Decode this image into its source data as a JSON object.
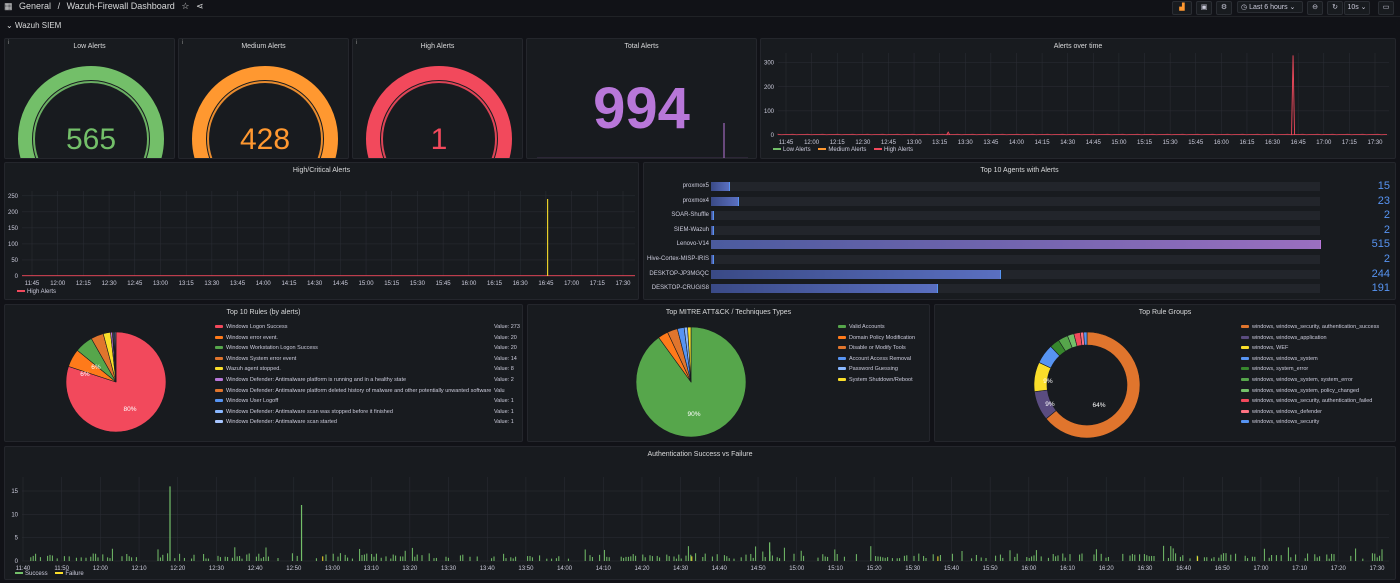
{
  "topbar": {
    "grid_icon": "apps-icon",
    "breadcrumb_root": "General",
    "breadcrumb_sep": "/",
    "dashboard_title": "Wazuh-Firewall Dashboard",
    "time_range": "Last 6 hours",
    "refresh_interval": "10s"
  },
  "row": {
    "title": "Wazuh SIEM",
    "collapse_icon": "chevron-down-icon"
  },
  "gauges": [
    {
      "title": "Low Alerts",
      "value": "565",
      "color": "#73bf69",
      "fraction": 1.0
    },
    {
      "title": "Medium Alerts",
      "value": "428",
      "color": "#ff9830",
      "fraction": 1.0
    },
    {
      "title": "High Alerts",
      "value": "1",
      "color": "#f2495c",
      "fraction": 1.0
    }
  ],
  "total": {
    "title": "Total Alerts",
    "value": "994",
    "color": "#b877d9"
  },
  "alerts_over_time": {
    "title": "Alerts over time",
    "legend": [
      {
        "label": "Low Alerts",
        "color": "#73bf69"
      },
      {
        "label": "Medium Alerts",
        "color": "#ff9830"
      },
      {
        "label": "High Alerts",
        "color": "#f2495c"
      }
    ]
  },
  "high_critical": {
    "title": "High/Critical Alerts",
    "legend": [
      {
        "label": "High Alerts",
        "color": "#f2495c"
      }
    ]
  },
  "top_agents": {
    "title": "Top 10 Agents with Alerts",
    "max": 515,
    "items": [
      {
        "name": "proxmox5",
        "value": "15",
        "num": 15
      },
      {
        "name": "proxmox4",
        "value": "23",
        "num": 23
      },
      {
        "name": "SOAR-Shuffle",
        "value": "2",
        "num": 2
      },
      {
        "name": "SIEM-Wazuh",
        "value": "2",
        "num": 2
      },
      {
        "name": "Lenovo-V14",
        "value": "515",
        "num": 515
      },
      {
        "name": "Hive-Cortex-MISP-IRIS",
        "value": "2",
        "num": 2
      },
      {
        "name": "DESKTOP-JP3MGQC",
        "value": "244",
        "num": 244
      },
      {
        "name": "DESKTOP-CRUGIS8",
        "value": "191",
        "num": 191
      }
    ]
  },
  "top_rules": {
    "title": "Top 10 Rules (by alerts)",
    "items": [
      {
        "label": "Windows Logon Success",
        "value": "Value: 273",
        "color": "#f2495c"
      },
      {
        "label": "Windows error event.",
        "value": "Value: 20",
        "color": "#ff7a1a"
      },
      {
        "label": "Windows Workstation Logon Success",
        "value": "Value: 20",
        "color": "#56a64b"
      },
      {
        "label": "Windows System error event",
        "value": "Value: 14",
        "color": "#e0752d"
      },
      {
        "label": "Wazuh agent stopped.",
        "value": "Value: 8",
        "color": "#fade2a"
      },
      {
        "label": "Windows Defender: Antimalware platform is running and in a healthy state",
        "value": "Value: 2",
        "color": "#b877d9"
      },
      {
        "label": "Windows Defender: Antimalware platform deleted history of malware and other potentially unwanted software",
        "value": "Valu",
        "color": "#e0752d"
      },
      {
        "label": "Windows User Logoff",
        "value": "Value: 1",
        "color": "#5794f2"
      },
      {
        "label": "Windows Defender: Antimalware scan was stopped before it finished",
        "value": "Value: 1",
        "color": "#8ab8ff"
      },
      {
        "label": "Windows Defender: Antimalware scan started",
        "value": "Value: 1",
        "color": "#a8c6ff"
      }
    ],
    "slice_labels": [
      "80%",
      "6%",
      "6%"
    ]
  },
  "mitre": {
    "title": "Top MITRE ATT&CK / Techniques Types",
    "items": [
      {
        "label": "Valid Accounts",
        "color": "#56a64b"
      },
      {
        "label": "Domain Policy Modification",
        "color": "#ff7a1a"
      },
      {
        "label": "Disable or Modify Tools",
        "color": "#e0752d"
      },
      {
        "label": "Account Access Removal",
        "color": "#5794f2"
      },
      {
        "label": "Password Guessing",
        "color": "#8ab8ff"
      },
      {
        "label": "System Shutdown/Reboot",
        "color": "#fade2a"
      }
    ],
    "slice_labels": [
      "90%"
    ]
  },
  "rule_groups": {
    "title": "Top Rule Groups",
    "items": [
      {
        "label": "windows, windows_security, authentication_success",
        "color": "#e0752d"
      },
      {
        "label": "windows, windows_application",
        "color": "#5a4c80"
      },
      {
        "label": "windows, WEF",
        "color": "#fade2a"
      },
      {
        "label": "windows, windows_system",
        "color": "#5794f2"
      },
      {
        "label": "windows, system_error",
        "color": "#37872d"
      },
      {
        "label": "windows, windows_system, system_error",
        "color": "#56a64b"
      },
      {
        "label": "windows, windows_system, policy_changed",
        "color": "#73bf69"
      },
      {
        "label": "windows, windows_security, authentication_failed",
        "color": "#f2495c"
      },
      {
        "label": "windows, windows_defender",
        "color": "#ff7383"
      },
      {
        "label": "windows, windows_security",
        "color": "#5794f2"
      }
    ],
    "slice_labels": [
      "64%",
      "9%",
      "9%"
    ]
  },
  "auth": {
    "title": "Authentication Success vs Failure",
    "legend": [
      {
        "label": "Success",
        "color": "#73bf69"
      },
      {
        "label": "Failure",
        "color": "#fade2a"
      }
    ]
  },
  "chart_data": [
    {
      "type": "line",
      "title": "Alerts over time",
      "x_ticks": [
        "11:45",
        "12:00",
        "12:15",
        "12:30",
        "12:45",
        "13:00",
        "13:15",
        "13:30",
        "13:45",
        "14:00",
        "14:15",
        "14:30",
        "14:45",
        "15:00",
        "15:15",
        "15:30",
        "15:45",
        "16:00",
        "16:15",
        "16:30",
        "16:45",
        "17:00",
        "17:15",
        "17:30"
      ],
      "y_ticks": [
        0,
        100,
        200,
        300
      ],
      "ylim": [
        0,
        340
      ],
      "series": [
        {
          "name": "Low Alerts",
          "values": []
        },
        {
          "name": "Medium Alerts",
          "values": []
        },
        {
          "name": "High Alerts",
          "peaks": [
            {
              "x": "13:20",
              "y": 12
            },
            {
              "x": "16:42",
              "y": 330
            }
          ]
        }
      ]
    },
    {
      "type": "line",
      "title": "High/Critical Alerts",
      "x_ticks": [
        "11:45",
        "12:00",
        "12:15",
        "12:30",
        "12:45",
        "13:00",
        "13:15",
        "13:30",
        "13:45",
        "14:00",
        "14:15",
        "14:30",
        "14:45",
        "15:00",
        "15:15",
        "15:30",
        "15:45",
        "16:00",
        "16:15",
        "16:30",
        "16:45",
        "17:00",
        "17:15",
        "17:30"
      ],
      "y_ticks": [
        0,
        50,
        100,
        150,
        200,
        250
      ],
      "ylim": [
        0,
        265
      ],
      "series": [
        {
          "name": "High Alerts",
          "peaks": [
            {
              "x": "16:46",
              "y": 240
            }
          ]
        }
      ]
    },
    {
      "type": "bar",
      "title": "Top 10 Agents with Alerts",
      "categories": [
        "proxmox5",
        "proxmox4",
        "SOAR-Shuffle",
        "SIEM-Wazuh",
        "Lenovo-V14",
        "Hive-Cortex-MISP-IRIS",
        "DESKTOP-JP3MGQC",
        "DESKTOP-CRUGIS8"
      ],
      "values": [
        15,
        23,
        2,
        2,
        515,
        2,
        244,
        191
      ]
    },
    {
      "type": "pie",
      "title": "Top 10 Rules (by alerts)",
      "categories": [
        "Windows Logon Success",
        "Windows error event.",
        "Windows Workstation Logon Success",
        "Windows System error event",
        "Wazuh agent stopped.",
        "Windows Defender: Antimalware platform is running and in a healthy state",
        "Windows Defender: Antimalware platform deleted history of malware and other potentially unwanted software",
        "Windows User Logoff",
        "Windows Defender: Antimalware scan was stopped before it finished",
        "Windows Defender: Antimalware scan started"
      ],
      "values": [
        273,
        20,
        20,
        14,
        8,
        2,
        1,
        1,
        1,
        1
      ]
    },
    {
      "type": "pie",
      "title": "Top MITRE ATT&CK / Techniques Types",
      "categories": [
        "Valid Accounts",
        "Domain Policy Modification",
        "Disable or Modify Tools",
        "Account Access Removal",
        "Password Guessing",
        "System Shutdown/Reboot"
      ],
      "values": [
        90,
        3,
        3,
        2,
        1,
        1
      ]
    },
    {
      "type": "pie",
      "title": "Top Rule Groups",
      "donut": true,
      "categories": [
        "windows, windows_security, authentication_success",
        "windows, windows_application",
        "windows, WEF",
        "windows, windows_system",
        "windows, system_error",
        "windows, windows_system, system_error",
        "windows, windows_system, policy_changed",
        "windows, windows_security, authentication_failed",
        "windows, windows_defender",
        "windows, windows_security"
      ],
      "values": [
        64,
        9,
        9,
        6,
        3,
        3,
        2,
        2,
        1,
        1
      ]
    },
    {
      "type": "bar",
      "title": "Authentication Success vs Failure",
      "x_ticks": [
        "11:40",
        "11:50",
        "12:00",
        "12:10",
        "12:20",
        "12:30",
        "12:40",
        "12:50",
        "13:00",
        "13:10",
        "13:20",
        "13:30",
        "13:40",
        "13:50",
        "14:00",
        "14:10",
        "14:20",
        "14:30",
        "14:40",
        "14:50",
        "15:00",
        "15:10",
        "15:20",
        "15:30",
        "15:40",
        "15:50",
        "16:00",
        "16:10",
        "16:20",
        "16:30",
        "16:40",
        "16:50",
        "17:00",
        "17:10",
        "17:20",
        "17:30"
      ],
      "y_ticks": [
        0,
        5,
        10,
        15
      ],
      "ylim": [
        0,
        18
      ],
      "series": [
        {
          "name": "Success",
          "peaks": [
            {
              "x": "12:18",
              "y": 16
            },
            {
              "x": "12:52",
              "y": 12
            },
            {
              "x": "14:53",
              "y": 4
            }
          ]
        },
        {
          "name": "Failure",
          "values": []
        }
      ]
    }
  ]
}
